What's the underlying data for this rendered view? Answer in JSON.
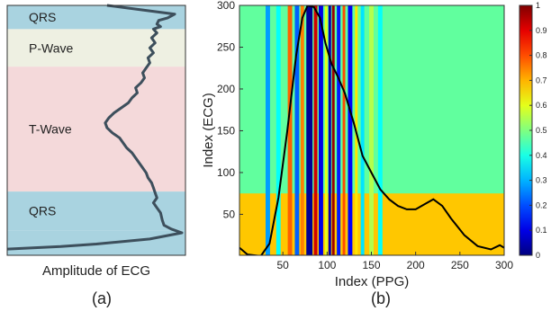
{
  "chart_data": [
    {
      "panel_label": "(a)",
      "type": "line",
      "xlabel": "Amplitude of ECG",
      "bands": [
        {
          "label": "QRS",
          "y_range": [
            0.0,
            0.095
          ],
          "color": "#a9d3e0"
        },
        {
          "label": "P-Wave",
          "y_range": [
            0.095,
            0.245
          ],
          "color": "#eef0e2"
        },
        {
          "label": "T-Wave",
          "y_range": [
            0.245,
            0.745
          ],
          "color": "#f4d9da"
        },
        {
          "label": "QRS",
          "y_range": [
            0.745,
            0.9
          ],
          "color": "#a9d3e0"
        },
        {
          "label": "",
          "y_range": [
            0.9,
            1.0
          ],
          "color": "#a9d3e0"
        }
      ],
      "series": [
        {
          "color": "#3d4f5c",
          "points": [
            [
              0.56,
              0.0
            ],
            [
              0.78,
              0.02
            ],
            [
              0.94,
              0.035
            ],
            [
              0.9,
              0.05
            ],
            [
              0.85,
              0.06
            ],
            [
              0.84,
              0.075
            ],
            [
              0.86,
              0.085
            ],
            [
              0.82,
              0.095
            ],
            [
              0.84,
              0.11
            ],
            [
              0.81,
              0.13
            ],
            [
              0.83,
              0.15
            ],
            [
              0.8,
              0.17
            ],
            [
              0.82,
              0.19
            ],
            [
              0.79,
              0.21
            ],
            [
              0.8,
              0.23
            ],
            [
              0.78,
              0.25
            ],
            [
              0.76,
              0.27
            ],
            [
              0.77,
              0.29
            ],
            [
              0.75,
              0.31
            ],
            [
              0.72,
              0.33
            ],
            [
              0.73,
              0.35
            ],
            [
              0.7,
              0.37
            ],
            [
              0.68,
              0.39
            ],
            [
              0.64,
              0.41
            ],
            [
              0.6,
              0.43
            ],
            [
              0.57,
              0.45
            ],
            [
              0.55,
              0.47
            ],
            [
              0.56,
              0.49
            ],
            [
              0.59,
              0.51
            ],
            [
              0.63,
              0.53
            ],
            [
              0.65,
              0.55
            ],
            [
              0.67,
              0.57
            ],
            [
              0.7,
              0.59
            ],
            [
              0.72,
              0.61
            ],
            [
              0.74,
              0.63
            ],
            [
              0.76,
              0.65
            ],
            [
              0.78,
              0.67
            ],
            [
              0.79,
              0.69
            ],
            [
              0.81,
              0.71
            ],
            [
              0.82,
              0.73
            ],
            [
              0.83,
              0.75
            ],
            [
              0.84,
              0.77
            ],
            [
              0.82,
              0.79
            ],
            [
              0.84,
              0.81
            ],
            [
              0.86,
              0.83
            ],
            [
              0.87,
              0.86
            ],
            [
              0.88,
              0.88
            ],
            [
              0.92,
              0.895
            ],
            [
              0.98,
              0.91
            ],
            [
              0.8,
              0.935
            ],
            [
              0.5,
              0.955
            ],
            [
              0.3,
              0.965
            ],
            [
              0.0,
              0.975
            ]
          ]
        }
      ]
    },
    {
      "panel_label": "(b)",
      "type": "heatmap",
      "xlabel": "Index (PPG)",
      "ylabel": "Index (ECG)",
      "xlim": [
        1,
        300
      ],
      "ylim": [
        1,
        300
      ],
      "xticks": [
        50,
        100,
        150,
        200,
        250,
        300
      ],
      "yticks": [
        50,
        100,
        150,
        200,
        250,
        300
      ],
      "colorbar": {
        "min": 0,
        "max": 1,
        "ticks": [
          0,
          0.1,
          0.2,
          0.3,
          0.4,
          0.5,
          0.6,
          0.7,
          0.8,
          0.9,
          1
        ],
        "colormap": "jet"
      },
      "background_value": 0.47,
      "columns": [
        {
          "x": 33,
          "value": 0.28,
          "width": 5
        },
        {
          "x": 45,
          "value": 0.38,
          "width": 5
        },
        {
          "x": 58,
          "value": 0.78,
          "width": 5
        },
        {
          "x": 66,
          "value": 0.22,
          "width": 5
        },
        {
          "x": 72,
          "value": 0.75,
          "width": 4
        },
        {
          "x": 80,
          "value": 0.02,
          "width": 7
        },
        {
          "x": 87,
          "value": 0.92,
          "width": 4
        },
        {
          "x": 93,
          "value": 0.1,
          "width": 5
        },
        {
          "x": 99,
          "value": 0.6,
          "width": 3
        },
        {
          "x": 103,
          "value": 0.05,
          "width": 3
        },
        {
          "x": 107,
          "value": 0.97,
          "width": 3
        },
        {
          "x": 113,
          "value": 0.15,
          "width": 4
        },
        {
          "x": 119,
          "value": 0.8,
          "width": 3
        },
        {
          "x": 126,
          "value": 0.12,
          "width": 5
        },
        {
          "x": 133,
          "value": 0.65,
          "width": 3
        },
        {
          "x": 140,
          "value": 0.35,
          "width": 4
        },
        {
          "x": 150,
          "value": 0.55,
          "width": 5
        },
        {
          "x": 160,
          "value": 0.38,
          "width": 5
        }
      ],
      "low_band": {
        "y_range": [
          1,
          75
        ],
        "value": 0.68
      },
      "series": [
        {
          "color": "#000000",
          "points": [
            [
              1,
              10
            ],
            [
              10,
              2
            ],
            [
              25,
              0
            ],
            [
              35,
              15
            ],
            [
              45,
              70
            ],
            [
              55,
              150
            ],
            [
              65,
              240
            ],
            [
              72,
              285
            ],
            [
              78,
              300
            ],
            [
              85,
              298
            ],
            [
              92,
              285
            ],
            [
              98,
              255
            ],
            [
              105,
              230
            ],
            [
              112,
              215
            ],
            [
              120,
              195
            ],
            [
              130,
              160
            ],
            [
              140,
              120
            ],
            [
              150,
              100
            ],
            [
              160,
              80
            ],
            [
              170,
              68
            ],
            [
              180,
              60
            ],
            [
              190,
              56
            ],
            [
              200,
              56
            ],
            [
              210,
              62
            ],
            [
              220,
              68
            ],
            [
              230,
              60
            ],
            [
              240,
              45
            ],
            [
              255,
              25
            ],
            [
              270,
              12
            ],
            [
              285,
              8
            ],
            [
              295,
              13
            ],
            [
              300,
              10
            ]
          ]
        }
      ]
    }
  ]
}
